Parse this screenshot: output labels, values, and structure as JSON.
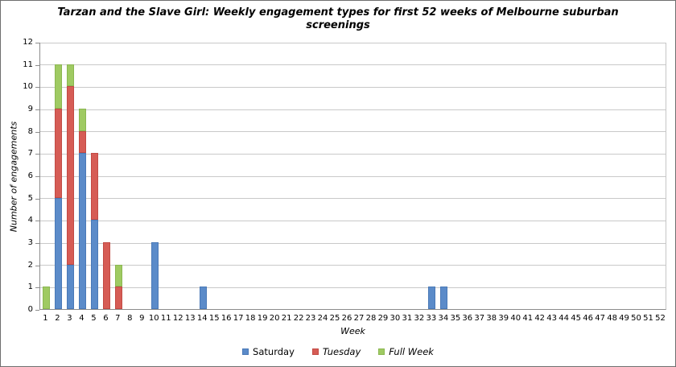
{
  "chart_data": {
    "type": "bar",
    "stacked": true,
    "title": "Tarzan and the Slave Girl: Weekly engagement types for first 52 weeks of Melbourne suburban screenings",
    "xlabel": "Week",
    "ylabel": "Number of engagements",
    "ylim": [
      0,
      12
    ],
    "yticks": [
      0,
      1,
      2,
      3,
      4,
      5,
      6,
      7,
      8,
      9,
      10,
      11,
      12
    ],
    "grid": true,
    "legend_position": "bottom",
    "categories": [
      1,
      2,
      3,
      4,
      5,
      6,
      7,
      8,
      9,
      10,
      11,
      12,
      13,
      14,
      15,
      16,
      17,
      18,
      19,
      20,
      21,
      22,
      23,
      24,
      25,
      26,
      27,
      28,
      29,
      30,
      31,
      32,
      33,
      34,
      35,
      36,
      37,
      38,
      39,
      40,
      41,
      42,
      43,
      44,
      45,
      46,
      47,
      48,
      49,
      50,
      51,
      52
    ],
    "series": [
      {
        "name": "Saturday",
        "color": "#5B8BC9",
        "border_color": "#4A79B7",
        "values": [
          0,
          5,
          2,
          7,
          4,
          0,
          0,
          0,
          0,
          3,
          0,
          0,
          0,
          1,
          0,
          0,
          0,
          0,
          0,
          0,
          0,
          0,
          0,
          0,
          0,
          0,
          0,
          0,
          0,
          0,
          0,
          0,
          1,
          1,
          0,
          0,
          0,
          0,
          0,
          0,
          0,
          0,
          0,
          0,
          0,
          0,
          0,
          0,
          0,
          0,
          0,
          0
        ]
      },
      {
        "name": "Tuesday",
        "color": "#D65C55",
        "border_color": "#C24A44",
        "values": [
          0,
          4,
          8,
          1,
          3,
          3,
          1,
          0,
          0,
          0,
          0,
          0,
          0,
          0,
          0,
          0,
          0,
          0,
          0,
          0,
          0,
          0,
          0,
          0,
          0,
          0,
          0,
          0,
          0,
          0,
          0,
          0,
          0,
          0,
          0,
          0,
          0,
          0,
          0,
          0,
          0,
          0,
          0,
          0,
          0,
          0,
          0,
          0,
          0,
          0,
          0,
          0
        ]
      },
      {
        "name": "Full Week",
        "color": "#9FCA62",
        "border_color": "#8BB751",
        "values": [
          1,
          2,
          1,
          1,
          0,
          0,
          1,
          0,
          0,
          0,
          0,
          0,
          0,
          0,
          0,
          0,
          0,
          0,
          0,
          0,
          0,
          0,
          0,
          0,
          0,
          0,
          0,
          0,
          0,
          0,
          0,
          0,
          0,
          0,
          0,
          0,
          0,
          0,
          0,
          0,
          0,
          0,
          0,
          0,
          0,
          0,
          0,
          0,
          0,
          0,
          0,
          0
        ]
      }
    ]
  }
}
